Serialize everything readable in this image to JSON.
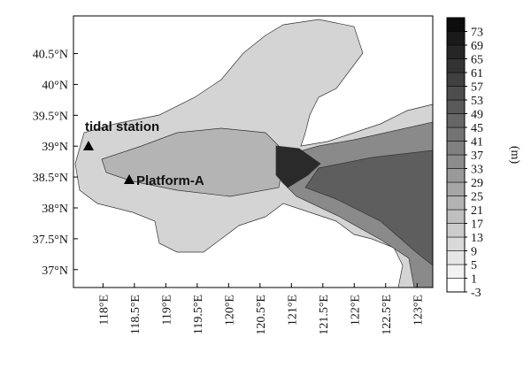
{
  "chart_data": {
    "type": "contour-map",
    "xlim": [
      117.53,
      123.25
    ],
    "ylim": [
      36.71,
      41.11
    ],
    "xticks": [
      {
        "value": 118,
        "label": "118°E"
      },
      {
        "value": 118.5,
        "label": "118.5°E"
      },
      {
        "value": 119,
        "label": "119°E"
      },
      {
        "value": 119.5,
        "label": "119.5°E"
      },
      {
        "value": 120,
        "label": "120°E"
      },
      {
        "value": 120.5,
        "label": "120.5°E"
      },
      {
        "value": 121,
        "label": "121°E"
      },
      {
        "value": 121.5,
        "label": "121.5°E"
      },
      {
        "value": 122,
        "label": "122°E"
      },
      {
        "value": 122.5,
        "label": "122.5°E"
      },
      {
        "value": 123,
        "label": "123°E"
      }
    ],
    "yticks": [
      {
        "value": 37,
        "label": "37°N"
      },
      {
        "value": 37.5,
        "label": "37.5°N"
      },
      {
        "value": 38,
        "label": "38°N"
      },
      {
        "value": 38.5,
        "label": "38.5°N"
      },
      {
        "value": 39,
        "label": "39°N"
      },
      {
        "value": 39.5,
        "label": "39.5°N"
      },
      {
        "value": 40,
        "label": "40°N"
      },
      {
        "value": 40.5,
        "label": "40.5°N"
      }
    ],
    "colorbar": {
      "label": "(m)",
      "lim": [
        -3,
        77
      ],
      "ticks": [
        -3,
        1,
        5,
        9,
        13,
        17,
        21,
        25,
        29,
        33,
        37,
        41,
        45,
        49,
        53,
        57,
        61,
        65,
        69,
        73
      ]
    },
    "annotations": [
      "tidal station",
      "Platform-A"
    ]
  }
}
